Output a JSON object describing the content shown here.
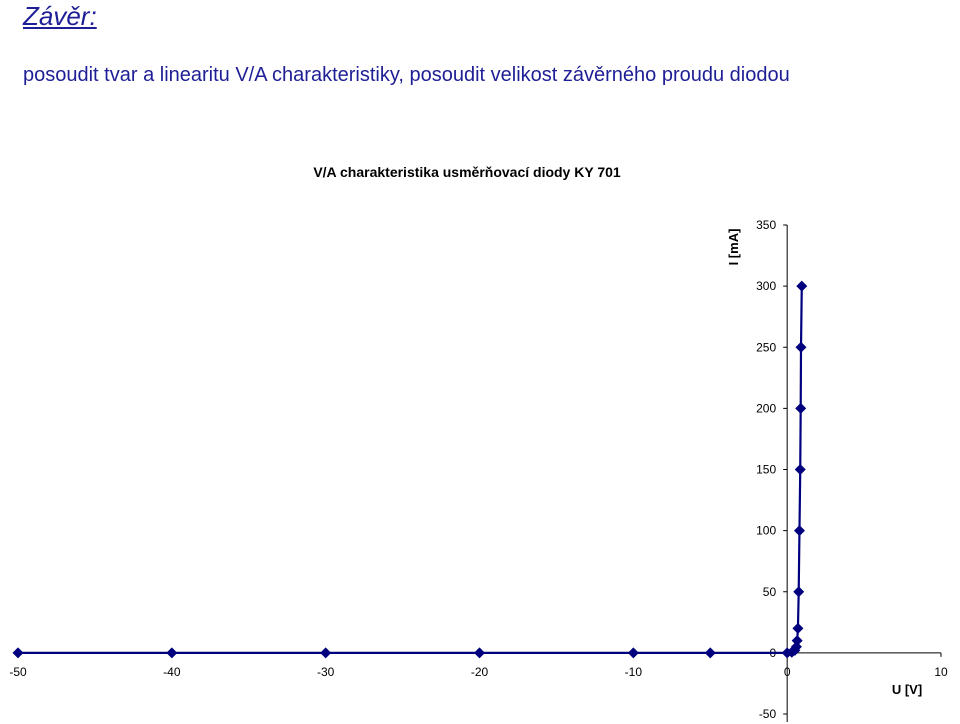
{
  "page": {
    "heading": "Závěr:",
    "body": "posoudit tvar a linearitu V/A charakteristiky, posoudit velikost závěrného proudu diodou"
  },
  "chart_data": {
    "type": "scatter",
    "title": "V/A charakteristika usměrňovací diody KY 701",
    "xlabel": "U [V]",
    "ylabel": "I [mA]",
    "xlim": [
      -50,
      10
    ],
    "ylim": [
      -50,
      350
    ],
    "xticks": [
      -50,
      -40,
      -30,
      -20,
      -10,
      0,
      10
    ],
    "yticks": [
      -50,
      0,
      50,
      100,
      150,
      200,
      250,
      300,
      350
    ],
    "series_color": "#00007f",
    "points": [
      {
        "x": -50,
        "y": 0
      },
      {
        "x": -40,
        "y": 0
      },
      {
        "x": -30,
        "y": 0
      },
      {
        "x": -20,
        "y": 0
      },
      {
        "x": -10,
        "y": 0
      },
      {
        "x": -5,
        "y": 0
      },
      {
        "x": 0,
        "y": 0
      },
      {
        "x": 0.3,
        "y": 0.5
      },
      {
        "x": 0.5,
        "y": 2
      },
      {
        "x": 0.6,
        "y": 5
      },
      {
        "x": 0.65,
        "y": 10
      },
      {
        "x": 0.7,
        "y": 20
      },
      {
        "x": 0.75,
        "y": 50
      },
      {
        "x": 0.8,
        "y": 100
      },
      {
        "x": 0.85,
        "y": 150
      },
      {
        "x": 0.88,
        "y": 200
      },
      {
        "x": 0.9,
        "y": 250
      },
      {
        "x": 0.95,
        "y": 300
      }
    ]
  }
}
